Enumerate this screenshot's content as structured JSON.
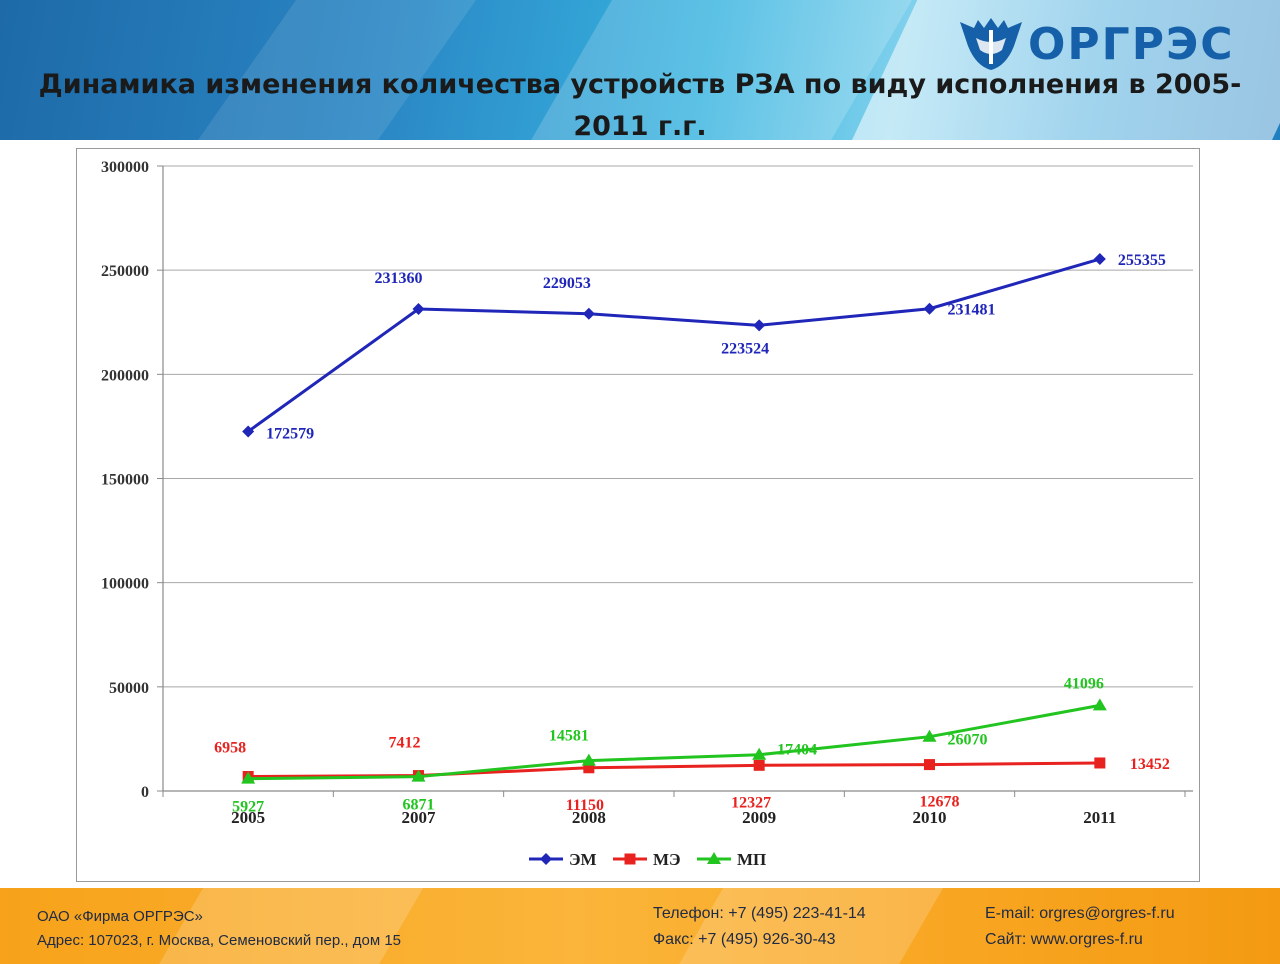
{
  "header": {
    "title": "Динамика изменения количества устройств РЗА по виду исполнения в 2005-2011 г.г.",
    "logo_text": "ОРГРЭС"
  },
  "chart_data": {
    "type": "line",
    "title": "",
    "xlabel": "",
    "ylabel": "",
    "categories": [
      "2005",
      "2007",
      "2008",
      "2009",
      "2010",
      "2011"
    ],
    "ylim": [
      0,
      300000
    ],
    "yticks": [
      "0",
      "50000",
      "100000",
      "150000",
      "200000",
      "250000",
      "300000"
    ],
    "grid": true,
    "legend_position": "bottom",
    "series": [
      {
        "name": "ЭМ",
        "color": "#1f26b8",
        "marker": "diamond",
        "values": [
          172579,
          231360,
          229053,
          223524,
          231481,
          255355
        ],
        "labels": [
          "172579",
          "231360",
          "229053",
          "223524",
          "231481",
          "255355"
        ]
      },
      {
        "name": "МЭ",
        "color": "#e8221f",
        "marker": "square",
        "values": [
          6958,
          7412,
          11150,
          12327,
          12678,
          13452
        ],
        "labels": [
          "6958",
          "7412",
          "11150",
          "12327",
          "12678",
          "13452"
        ]
      },
      {
        "name": "МП",
        "color": "#22c41f",
        "marker": "triangle",
        "values": [
          5927,
          6871,
          14581,
          17404,
          26070,
          41096
        ],
        "labels": [
          "5927",
          "6871",
          "14581",
          "17404",
          "26070",
          "41096"
        ]
      }
    ]
  },
  "footer": {
    "company": "ОАО «Фирма ОРГРЭС»",
    "address": "Адрес: 107023, г. Москва, Семеновский пер., дом 15",
    "phone": "Телефон: +7 (495) 223-41-14",
    "fax": "Факс: +7 (495) 926-30-43",
    "email": "E-mail: orgres@orgres-f.ru",
    "site": "Сайт: www.orgres-f.ru"
  }
}
